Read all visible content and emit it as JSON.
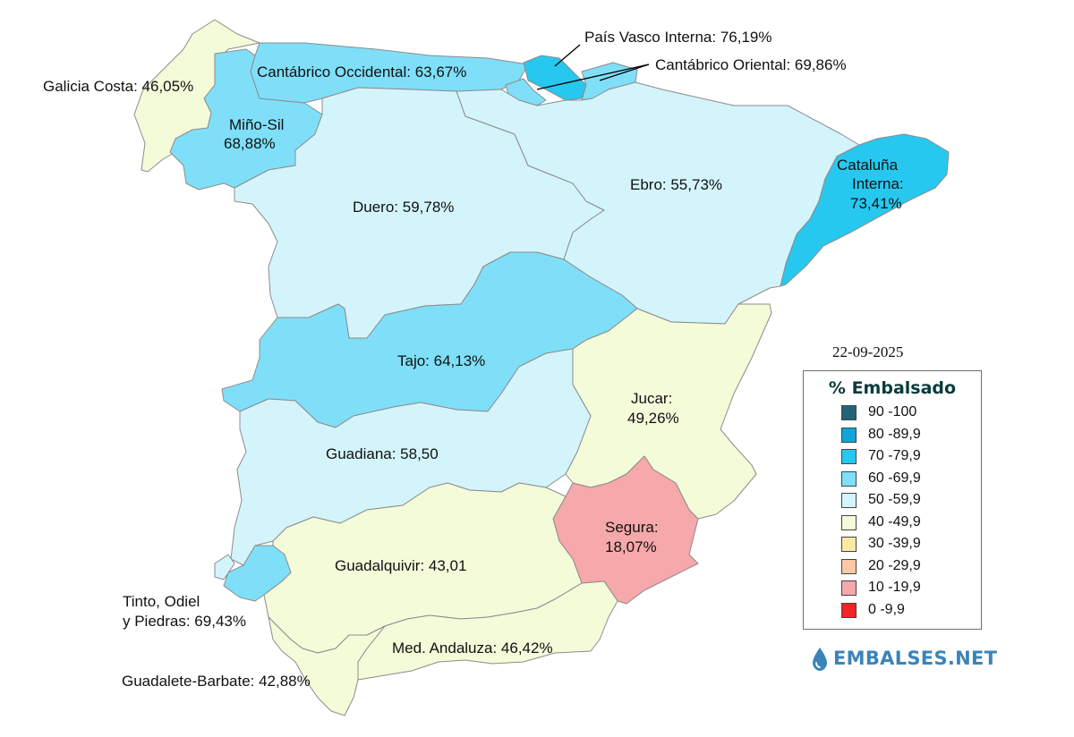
{
  "date": "22-09-2025",
  "colors": {
    "c90": "#23637a",
    "c80": "#0fa5d6",
    "c70": "#27c8ef",
    "c60": "#7fdff8",
    "c50": "#d3f4fb",
    "c40": "#f4fbd9",
    "c30": "#fbeaa4",
    "c20": "#fbc8a4",
    "c10": "#f6a8aa",
    "c0": "#f02424"
  },
  "basins": [
    {
      "id": "galicia",
      "label": "Galicia Costa: 46,05%",
      "value": 46.05,
      "color": "#f4fbd9"
    },
    {
      "id": "mino",
      "label": "Miño-Sil",
      "label2": "68,88%",
      "value": 68.88,
      "color": "#7fdff8"
    },
    {
      "id": "cantoc",
      "label": "Cantábrico Occidental: 63,67%",
      "value": 63.67,
      "color": "#7fdff8"
    },
    {
      "id": "pvasco",
      "label": "País Vasco Interna: 76,19%",
      "value": 76.19,
      "color": "#27c8ef"
    },
    {
      "id": "cantor",
      "label": "Cantábrico Oriental: 69,86%",
      "value": 69.86,
      "color": "#7fdff8"
    },
    {
      "id": "duero",
      "label": "Duero: 59,78%",
      "value": 59.78,
      "color": "#d3f4fb"
    },
    {
      "id": "ebro",
      "label": "Ebro: 55,73%",
      "value": 55.73,
      "color": "#d3f4fb"
    },
    {
      "id": "cataluna",
      "label": "Cataluña",
      "label2": "Interna:",
      "label3": "73,41%",
      "value": 73.41,
      "color": "#27c8ef"
    },
    {
      "id": "tajo",
      "label": "Tajo: 64,13%",
      "value": 64.13,
      "color": "#7fdff8"
    },
    {
      "id": "jucar",
      "label": "Jucar:",
      "label2": "49,26%",
      "value": 49.26,
      "color": "#f4fbd9"
    },
    {
      "id": "guadiana",
      "label": "Guadiana: 58,50",
      "value": 58.5,
      "color": "#d3f4fb"
    },
    {
      "id": "segura",
      "label": "Segura:",
      "label2": "18,07%",
      "value": 18.07,
      "color": "#f6a8aa"
    },
    {
      "id": "guadalquivir",
      "label": "Guadalquivir: 43,01",
      "value": 43.01,
      "color": "#f4fbd9"
    },
    {
      "id": "tinto",
      "label": "Tinto, Odiel",
      "label2": "y Piedras: 69,43%",
      "value": 69.43,
      "color": "#7fdff8"
    },
    {
      "id": "medand",
      "label": "Med. Andaluza: 46,42%",
      "value": 46.42,
      "color": "#f4fbd9"
    },
    {
      "id": "guadalete",
      "label": "Guadalete-Barbate: 42,88%",
      "value": 42.88,
      "color": "#f4fbd9"
    }
  ],
  "legend": {
    "title": "% Embalsado",
    "items": [
      {
        "label": "90 -100",
        "color": "#23637a"
      },
      {
        "label": "80 -89,9",
        "color": "#0fa5d6"
      },
      {
        "label": "70 -79,9",
        "color": "#27c8ef"
      },
      {
        "label": "60 -69,9",
        "color": "#7fdff8"
      },
      {
        "label": "50 -59,9",
        "color": "#d3f4fb"
      },
      {
        "label": "40 -49,9",
        "color": "#f4fbd9"
      },
      {
        "label": "30 -39,9",
        "color": "#fbeaa4"
      },
      {
        "label": "20 -29,9",
        "color": "#fbc8a4"
      },
      {
        "label": "10 -19,9",
        "color": "#f6a8aa"
      },
      {
        "label": "0 -9,9",
        "color": "#f02424"
      }
    ]
  },
  "brand": {
    "name": "EMBALSES.NET",
    "icon": "water-drop-icon"
  }
}
